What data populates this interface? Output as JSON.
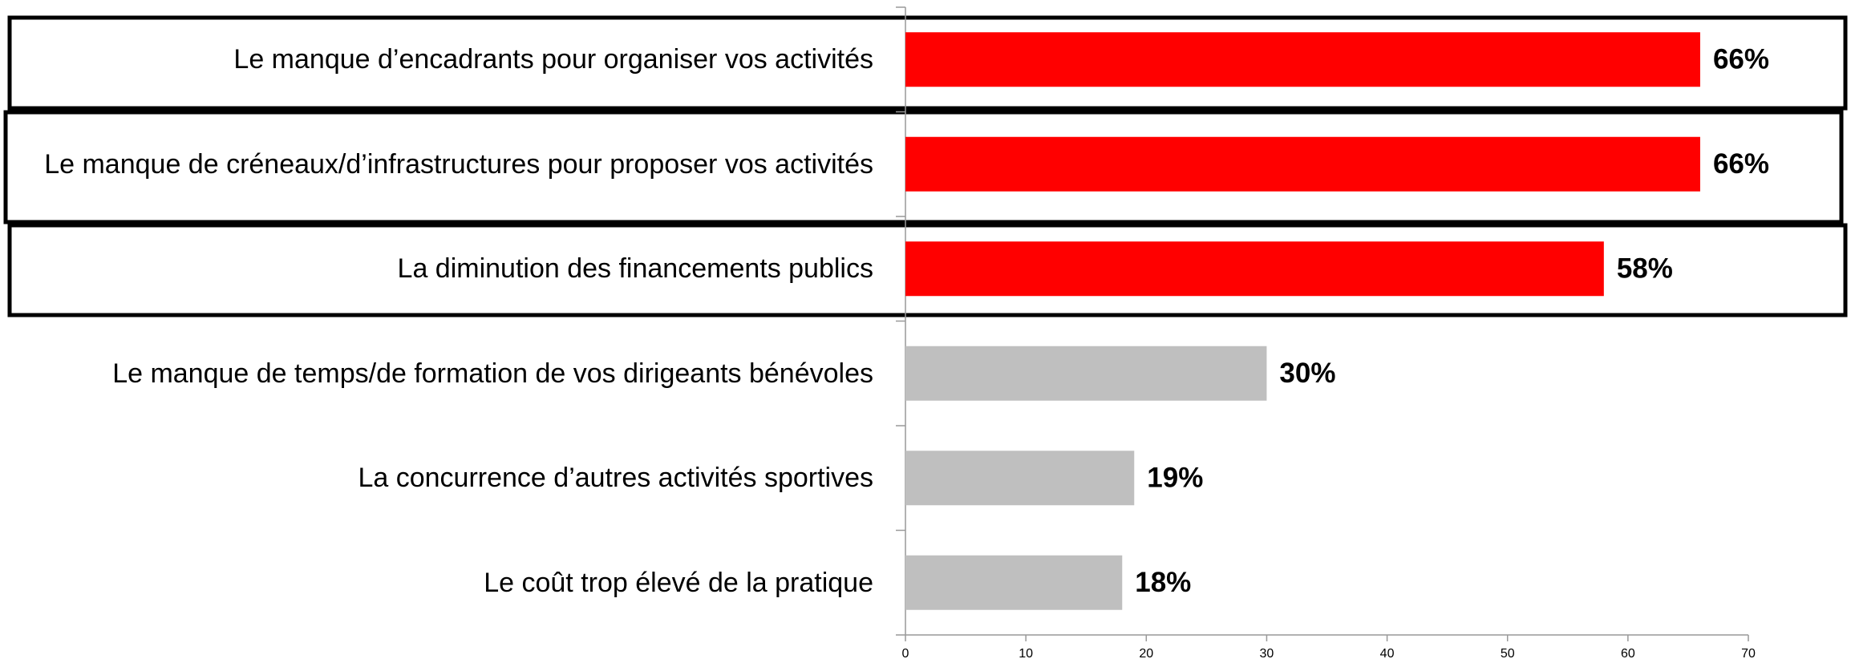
{
  "chart_data": {
    "type": "hbar",
    "categories": [
      "Le manque d’encadrants pour organiser vos activités",
      "Le manque de créneaux/d’infrastructures pour proposer vos activités",
      "La diminution des financements publics",
      "Le manque de temps/de formation de vos dirigeants bénévoles",
      "La concurrence d’autres activités sportives",
      "Le coût trop élevé de la pratique"
    ],
    "values": [
      66,
      66,
      58,
      30,
      19,
      18
    ],
    "value_labels": [
      "66%",
      "66%",
      "58%",
      "30%",
      "19%",
      "18%"
    ],
    "colors": [
      "#ff0000",
      "#ff0000",
      "#ff0000",
      "#bfbfbf",
      "#bfbfbf",
      "#bfbfbf"
    ],
    "xlim": [
      0,
      70
    ],
    "xticks": [
      0,
      10,
      20,
      30,
      40,
      50,
      60,
      70
    ]
  }
}
